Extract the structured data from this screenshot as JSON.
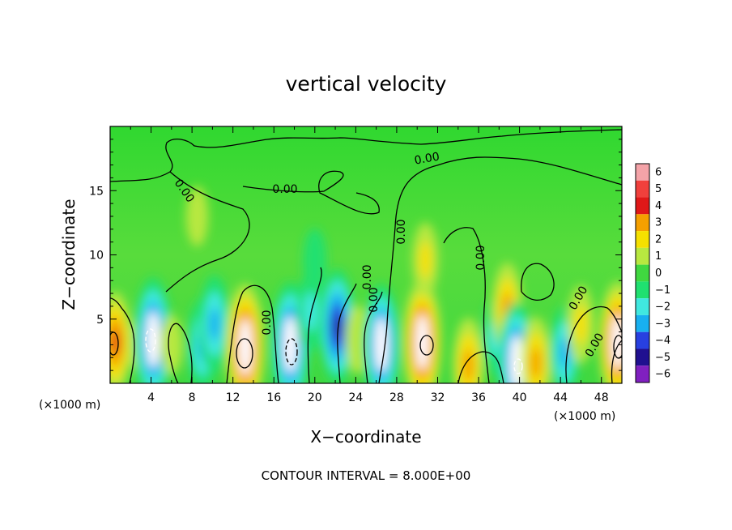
{
  "chart_data": {
    "type": "heatmap",
    "title": "vertical velocity",
    "xlabel": "X−coordinate",
    "ylabel": "Z−coordinate",
    "x_unit": "(×1000 m)",
    "xlim": [
      0,
      50
    ],
    "ylim": [
      0,
      20
    ],
    "x_ticks": [
      4,
      8,
      12,
      16,
      20,
      24,
      28,
      32,
      36,
      40,
      44,
      48
    ],
    "y_ticks": [
      5,
      10,
      15
    ],
    "colorbar": {
      "levels": [
        6,
        5,
        4,
        3,
        2,
        1,
        0,
        -1,
        -2,
        -3,
        -4,
        -5,
        -6
      ],
      "colors": [
        "#f4a3a8",
        "#f0403c",
        "#e01818",
        "#f5a000",
        "#f5e000",
        "#b8e840",
        "#40d840",
        "#20e070",
        "#40e8e0",
        "#18b0f0",
        "#2840e0",
        "#201090",
        "#8020c0"
      ]
    },
    "contour_labels": [
      "0.00",
      "0.00",
      "0.00",
      "0.00",
      "0.00",
      "0.00",
      "0.00",
      "0.00",
      "0.00",
      "0.00"
    ],
    "cells": [
      {
        "x": 0.5,
        "z": 3.2,
        "w": 3.6
      },
      {
        "x": 2.8,
        "z": 3.0,
        "w": 0.4
      },
      {
        "x": 4.2,
        "z": 3.4,
        "w": -5.2
      },
      {
        "x": 6.0,
        "z": 3.0,
        "w": 0.8
      },
      {
        "x": 9.0,
        "z": 3.0,
        "w": -3.0
      },
      {
        "x": 10.2,
        "z": 4.6,
        "w": -3.4
      },
      {
        "x": 13.2,
        "z": 2.8,
        "w": 5.4
      },
      {
        "x": 17.6,
        "z": 3.0,
        "w": -5.3
      },
      {
        "x": 19.6,
        "z": 5.6,
        "w": -2.2
      },
      {
        "x": 22.2,
        "z": 4.4,
        "w": -4.6
      },
      {
        "x": 24.2,
        "z": 3.4,
        "w": 1.4
      },
      {
        "x": 26.5,
        "z": 3.0,
        "w": -5.0
      },
      {
        "x": 30.5,
        "z": 3.2,
        "w": 5.2
      },
      {
        "x": 30.8,
        "z": 9.6,
        "w": 1.8
      },
      {
        "x": 35.0,
        "z": 1.4,
        "w": 3.2
      },
      {
        "x": 37.6,
        "z": 3.6,
        "w": -2.0
      },
      {
        "x": 38.8,
        "z": 5.8,
        "w": 3.0
      },
      {
        "x": 39.7,
        "z": 1.6,
        "w": -5.0
      },
      {
        "x": 41.6,
        "z": 1.6,
        "w": 3.0
      },
      {
        "x": 44.4,
        "z": 2.4,
        "w": -3.0
      },
      {
        "x": 46.0,
        "z": 4.6,
        "w": 2.0
      },
      {
        "x": 49.6,
        "z": 3.2,
        "w": 5.0
      },
      {
        "x": 20.0,
        "z": 9.5,
        "w": -1.2
      },
      {
        "x": 8.5,
        "z": 13.0,
        "w": 0.8
      }
    ],
    "note": "CONTOUR INTERVAL = 8.000E+00"
  }
}
